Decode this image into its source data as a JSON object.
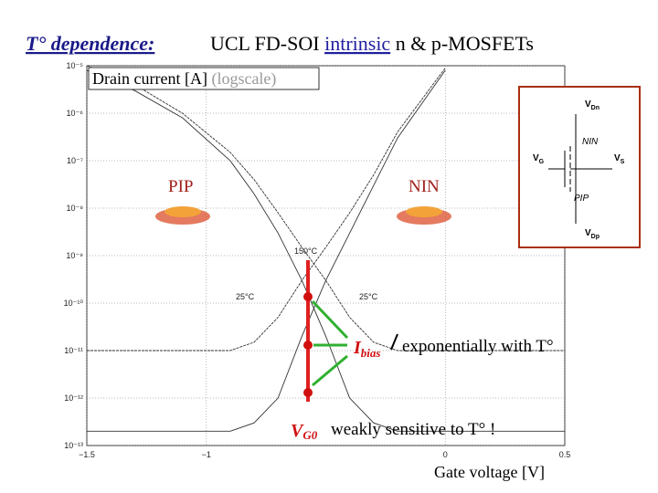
{
  "chart_data": {
    "type": "line",
    "title_lead": "T° dependence:",
    "title_parts": [
      "UCL FD-SOI ",
      "intrinsic",
      " n & p-MOSFETs"
    ],
    "ylabel": "Drain current [A]",
    "ylabel_note": "(logscale)",
    "xlabel": "Gate voltage [V]",
    "log_y": true,
    "x": [
      -1.5,
      -1.3,
      -1.1,
      -0.9,
      -0.8,
      -0.7,
      -0.6,
      -0.5,
      -0.4,
      -0.3,
      -0.2,
      0,
      0.5
    ],
    "series": [
      {
        "color": "#333333",
        "values": [
          8e-06,
          3e-06,
          8e-07,
          1e-07,
          2e-08,
          3e-09,
          3e-10,
          2e-11,
          1e-12,
          3e-13,
          2e-13,
          2e-13,
          2e-13
        ]
      },
      {
        "color": "#333333",
        "values": [
          1e-05,
          4e-06,
          1e-06,
          1.5e-07,
          4e-08,
          8e-09,
          1.5e-09,
          3e-10,
          5e-11,
          1.5e-11,
          1e-11,
          1e-11,
          1e-11
        ]
      },
      {
        "color": "#333333",
        "values": [
          2e-13,
          2e-13,
          2e-13,
          2e-13,
          3e-13,
          1e-12,
          2e-11,
          3e-10,
          3e-09,
          3e-08,
          3e-07,
          8e-06,
          null
        ]
      },
      {
        "color": "#333333",
        "values": [
          1e-11,
          1e-11,
          1e-11,
          1e-11,
          1.5e-11,
          5e-11,
          3e-10,
          1.5e-09,
          8e-09,
          5e-08,
          4e-07,
          9e-06,
          null
        ]
      }
    ],
    "xlim": [
      -1.5,
      0.5
    ],
    "ylim": [
      1e-13,
      1e-05
    ],
    "xticks": [
      {
        "value": -1.5,
        "label": "−1.5"
      },
      {
        "value": -1,
        "label": "−1"
      },
      0,
      0.5
    ],
    "yticks": [
      {
        "value": 1e-05,
        "label": "10⁻⁵"
      },
      {
        "value": 1e-06,
        "label": "10⁻⁶"
      },
      {
        "value": 1e-07,
        "label": "10⁻⁷"
      },
      {
        "value": 1e-08,
        "label": "10⁻⁸"
      },
      {
        "value": 1e-09,
        "label": "10⁻⁹"
      },
      {
        "value": 1e-10,
        "label": "10⁻¹⁰"
      },
      {
        "value": 1e-11,
        "label": "10⁻¹¹"
      },
      {
        "value": 1e-12,
        "label": "10⁻¹²"
      },
      {
        "value": 1e-13,
        "label": "10⁻¹³"
      }
    ],
    "grid": true,
    "annotations": [
      "PIP",
      "NIN",
      "150°C",
      "25°C",
      "25°C",
      "I",
      "bias",
      "exponentially with T°",
      "V",
      "G0",
      "weakly sensitive to T° !"
    ],
    "inset": [
      "V",
      "Dn",
      "NIN",
      "V",
      "G",
      "V",
      "S",
      "PIP",
      "V",
      "Dp"
    ]
  }
}
